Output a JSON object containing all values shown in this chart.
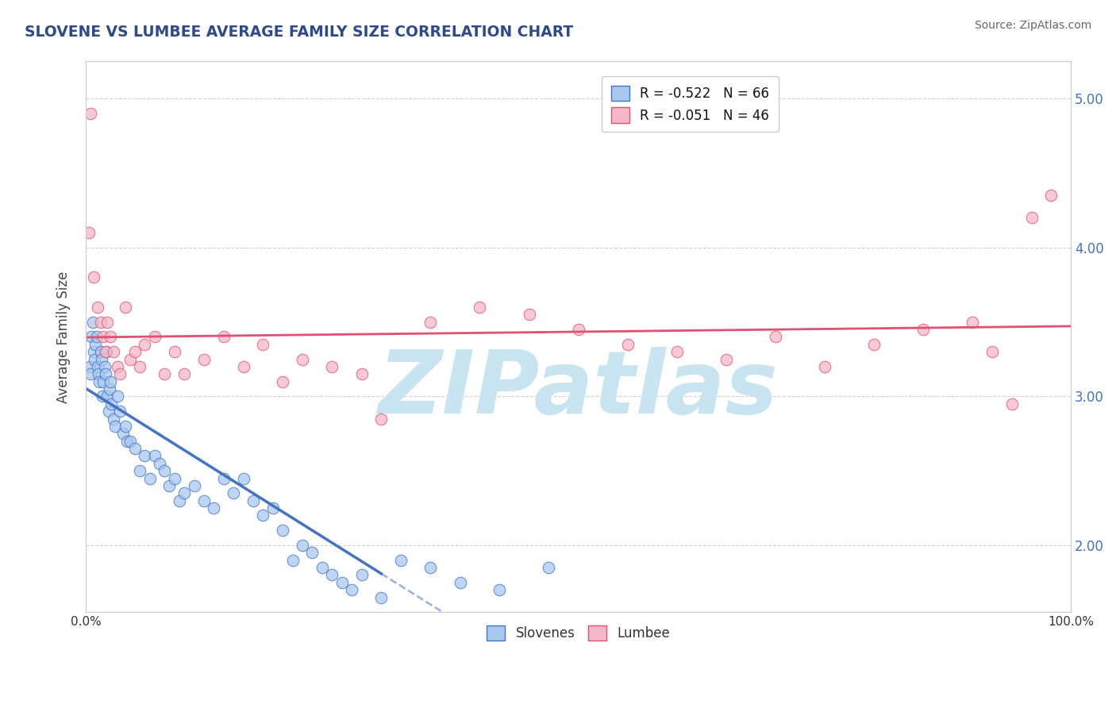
{
  "title": "SLOVENE VS LUMBEE AVERAGE FAMILY SIZE CORRELATION CHART",
  "source_text": "Source: ZipAtlas.com",
  "ylabel": "Average Family Size",
  "xmin": 0.0,
  "xmax": 100.0,
  "ymin": 1.55,
  "ymax": 5.25,
  "yticks": [
    2.0,
    3.0,
    4.0,
    5.0
  ],
  "legend_r1": "R = -0.522",
  "legend_n1": "N = 66",
  "legend_r2": "R = -0.051",
  "legend_n2": "N = 46",
  "legend_label1": "Slovenes",
  "legend_label2": "Lumbee",
  "color_slovene": "#A8C8F0",
  "color_lumbee": "#F4B8C8",
  "trend_color_slovene": "#4472C4",
  "trend_color_lumbee": "#E05070",
  "title_color": "#2E4A8B",
  "source_color": "#666666",
  "background_color": "#FFFFFF",
  "grid_color": "#CCCCCC",
  "watermark_color": "#C8E4F0",
  "watermark_text": "ZIPatlas",
  "slovene_x": [
    0.4,
    0.5,
    0.6,
    0.7,
    0.8,
    0.9,
    1.0,
    1.1,
    1.2,
    1.3,
    1.4,
    1.5,
    1.6,
    1.7,
    1.8,
    1.9,
    2.0,
    2.1,
    2.2,
    2.3,
    2.4,
    2.5,
    2.6,
    2.8,
    3.0,
    3.2,
    3.5,
    3.8,
    4.0,
    4.2,
    4.5,
    5.0,
    5.5,
    6.0,
    6.5,
    7.0,
    7.5,
    8.0,
    8.5,
    9.0,
    9.5,
    10.0,
    11.0,
    12.0,
    13.0,
    14.0,
    15.0,
    16.0,
    17.0,
    18.0,
    19.0,
    20.0,
    21.0,
    22.0,
    23.0,
    24.0,
    25.0,
    26.0,
    27.0,
    28.0,
    30.0,
    32.0,
    35.0,
    38.0,
    42.0,
    47.0
  ],
  "slovene_y": [
    3.2,
    3.15,
    3.4,
    3.5,
    3.3,
    3.25,
    3.35,
    3.4,
    3.2,
    3.15,
    3.1,
    3.3,
    3.25,
    3.0,
    3.1,
    3.2,
    3.15,
    3.3,
    3.0,
    2.9,
    3.05,
    3.1,
    2.95,
    2.85,
    2.8,
    3.0,
    2.9,
    2.75,
    2.8,
    2.7,
    2.7,
    2.65,
    2.5,
    2.6,
    2.45,
    2.6,
    2.55,
    2.5,
    2.4,
    2.45,
    2.3,
    2.35,
    2.4,
    2.3,
    2.25,
    2.45,
    2.35,
    2.45,
    2.3,
    2.2,
    2.25,
    2.1,
    1.9,
    2.0,
    1.95,
    1.85,
    1.8,
    1.75,
    1.7,
    1.8,
    1.65,
    1.9,
    1.85,
    1.75,
    1.7,
    1.85
  ],
  "lumbee_x": [
    0.3,
    0.5,
    0.8,
    1.2,
    1.5,
    1.8,
    2.0,
    2.2,
    2.5,
    2.8,
    3.2,
    3.5,
    4.0,
    4.5,
    5.0,
    5.5,
    6.0,
    7.0,
    8.0,
    9.0,
    10.0,
    12.0,
    14.0,
    16.0,
    18.0,
    20.0,
    22.0,
    25.0,
    28.0,
    30.0,
    35.0,
    40.0,
    45.0,
    50.0,
    55.0,
    60.0,
    65.0,
    70.0,
    75.0,
    80.0,
    85.0,
    90.0,
    92.0,
    94.0,
    96.0,
    98.0
  ],
  "lumbee_y": [
    4.1,
    4.9,
    3.8,
    3.6,
    3.5,
    3.4,
    3.3,
    3.5,
    3.4,
    3.3,
    3.2,
    3.15,
    3.6,
    3.25,
    3.3,
    3.2,
    3.35,
    3.4,
    3.15,
    3.3,
    3.15,
    3.25,
    3.4,
    3.2,
    3.35,
    3.1,
    3.25,
    3.2,
    3.15,
    2.85,
    3.5,
    3.6,
    3.55,
    3.45,
    3.35,
    3.3,
    3.25,
    3.4,
    3.2,
    3.35,
    3.45,
    3.5,
    3.3,
    2.95,
    4.2,
    4.35
  ],
  "trend_solid_end_x": 30.0
}
